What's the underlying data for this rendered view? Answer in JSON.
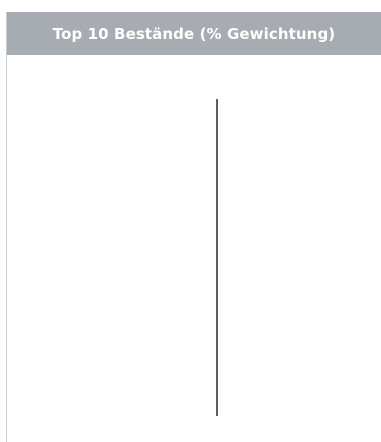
{
  "widget": {
    "title": "Top 10 Bestände (% Gewichtung)",
    "header_color": "#a6acb1",
    "axis_color": "#5b6063"
  }
}
